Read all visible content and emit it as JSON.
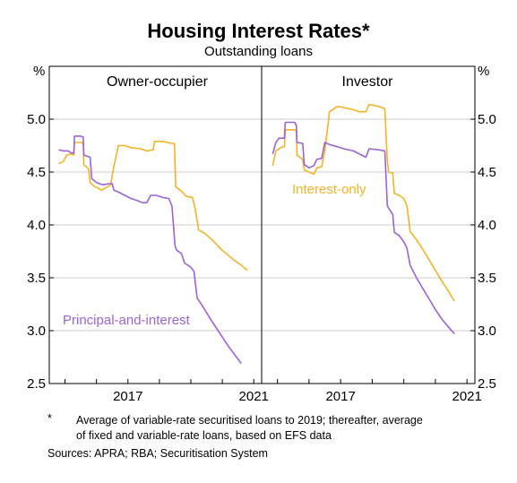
{
  "header": {
    "title": "Housing Interest Rates*",
    "subtitle": "Outstanding loans"
  },
  "footer": {
    "footnote_marker": "*",
    "footnote_line1": "Average of variable-rate securitised loans to 2019; thereafter, average",
    "footnote_line2": "of fixed and variable-rate loans, based on EFS data",
    "sources": "Sources: APRA; RBA; Securitisation System"
  },
  "colors": {
    "interest_only": "#f5b324",
    "principal_and_interest": "#9b63d6"
  },
  "chart_data": {
    "type": "line",
    "unit_left": "%",
    "unit_right": "%",
    "ylim": [
      2.5,
      5.5
    ],
    "yticks": [
      "2.5",
      "3.0",
      "3.5",
      "4.0",
      "4.5",
      "5.0"
    ],
    "xlim": [
      2014.5,
      2021.25
    ],
    "xticks": [
      {
        "value": 2017,
        "label": "2017"
      },
      {
        "value": 2021,
        "label": "2021"
      }
    ],
    "grid": true,
    "panels": [
      {
        "title": "Owner-occupier",
        "series": [
          {
            "name": "Interest-only",
            "color": "#f5b324",
            "points": [
              [
                2014.8,
                4.58
              ],
              [
                2014.95,
                4.6
              ],
              [
                2015.05,
                4.66
              ],
              [
                2015.2,
                4.67
              ],
              [
                2015.28,
                4.66
              ],
              [
                2015.3,
                4.78
              ],
              [
                2015.5,
                4.78
              ],
              [
                2015.58,
                4.77
              ],
              [
                2015.6,
                4.57
              ],
              [
                2015.75,
                4.53
              ],
              [
                2015.8,
                4.4
              ],
              [
                2015.95,
                4.36
              ],
              [
                2016.05,
                4.35
              ],
              [
                2016.15,
                4.33
              ],
              [
                2016.3,
                4.35
              ],
              [
                2016.45,
                4.38
              ],
              [
                2016.55,
                4.55
              ],
              [
                2016.7,
                4.75
              ],
              [
                2016.9,
                4.75
              ],
              [
                2017.1,
                4.73
              ],
              [
                2017.4,
                4.72
              ],
              [
                2017.6,
                4.7
              ],
              [
                2017.8,
                4.71
              ],
              [
                2017.85,
                4.79
              ],
              [
                2018.1,
                4.79
              ],
              [
                2018.4,
                4.77
              ],
              [
                2018.48,
                4.77
              ],
              [
                2018.52,
                4.36
              ],
              [
                2018.7,
                4.32
              ],
              [
                2018.85,
                4.27
              ],
              [
                2019.05,
                4.26
              ],
              [
                2019.12,
                4.18
              ],
              [
                2019.25,
                3.95
              ],
              [
                2019.4,
                3.93
              ],
              [
                2019.6,
                3.88
              ],
              [
                2019.8,
                3.82
              ],
              [
                2020.0,
                3.76
              ],
              [
                2020.2,
                3.71
              ],
              [
                2020.4,
                3.66
              ],
              [
                2020.6,
                3.62
              ],
              [
                2020.8,
                3.57
              ]
            ]
          },
          {
            "name": "Principal-and-interest",
            "color": "#9b63d6",
            "points": [
              [
                2014.8,
                4.71
              ],
              [
                2014.95,
                4.7
              ],
              [
                2015.1,
                4.7
              ],
              [
                2015.2,
                4.68
              ],
              [
                2015.28,
                4.68
              ],
              [
                2015.3,
                4.84
              ],
              [
                2015.5,
                4.84
              ],
              [
                2015.58,
                4.83
              ],
              [
                2015.6,
                4.66
              ],
              [
                2015.8,
                4.64
              ],
              [
                2015.85,
                4.44
              ],
              [
                2016.0,
                4.4
              ],
              [
                2016.2,
                4.38
              ],
              [
                2016.4,
                4.39
              ],
              [
                2016.5,
                4.39
              ],
              [
                2016.55,
                4.33
              ],
              [
                2016.7,
                4.31
              ],
              [
                2016.9,
                4.28
              ],
              [
                2017.1,
                4.25
              ],
              [
                2017.3,
                4.23
              ],
              [
                2017.45,
                4.21
              ],
              [
                2017.6,
                4.21
              ],
              [
                2017.72,
                4.28
              ],
              [
                2017.9,
                4.28
              ],
              [
                2018.1,
                4.26
              ],
              [
                2018.3,
                4.25
              ],
              [
                2018.4,
                4.18
              ],
              [
                2018.5,
                3.8
              ],
              [
                2018.55,
                3.76
              ],
              [
                2018.7,
                3.73
              ],
              [
                2018.8,
                3.64
              ],
              [
                2019.0,
                3.6
              ],
              [
                2019.1,
                3.56
              ],
              [
                2019.2,
                3.31
              ],
              [
                2019.4,
                3.22
              ],
              [
                2019.6,
                3.12
              ],
              [
                2019.8,
                3.03
              ],
              [
                2020.0,
                2.94
              ],
              [
                2020.2,
                2.85
              ],
              [
                2020.4,
                2.77
              ],
              [
                2020.6,
                2.69
              ]
            ]
          }
        ],
        "annotations": [
          {
            "text": "Principal-and-interest",
            "color": "#9b63d6"
          }
        ]
      },
      {
        "title": "Investor",
        "series": [
          {
            "name": "Interest-only",
            "color": "#f5b324",
            "points": [
              [
                2014.85,
                4.56
              ],
              [
                2014.95,
                4.7
              ],
              [
                2015.05,
                4.72
              ],
              [
                2015.18,
                4.74
              ],
              [
                2015.22,
                4.74
              ],
              [
                2015.25,
                4.9
              ],
              [
                2015.4,
                4.9
              ],
              [
                2015.55,
                4.9
              ],
              [
                2015.6,
                4.88
              ],
              [
                2015.62,
                4.66
              ],
              [
                2015.8,
                4.62
              ],
              [
                2015.85,
                4.52
              ],
              [
                2016.0,
                4.5
              ],
              [
                2016.15,
                4.48
              ],
              [
                2016.25,
                4.54
              ],
              [
                2016.4,
                4.55
              ],
              [
                2016.5,
                4.7
              ],
              [
                2016.65,
                5.07
              ],
              [
                2016.9,
                5.12
              ],
              [
                2017.1,
                5.11
              ],
              [
                2017.4,
                5.09
              ],
              [
                2017.6,
                5.07
              ],
              [
                2017.8,
                5.07
              ],
              [
                2017.9,
                5.14
              ],
              [
                2018.2,
                5.12
              ],
              [
                2018.4,
                5.1
              ],
              [
                2018.48,
                4.6
              ],
              [
                2018.52,
                4.5
              ],
              [
                2018.65,
                4.49
              ],
              [
                2018.7,
                4.3
              ],
              [
                2018.85,
                4.28
              ],
              [
                2019.0,
                4.25
              ],
              [
                2019.1,
                4.18
              ],
              [
                2019.2,
                3.94
              ],
              [
                2019.4,
                3.86
              ],
              [
                2019.6,
                3.77
              ],
              [
                2019.8,
                3.67
              ],
              [
                2020.0,
                3.57
              ],
              [
                2020.2,
                3.47
              ],
              [
                2020.4,
                3.38
              ],
              [
                2020.6,
                3.28
              ]
            ]
          },
          {
            "name": "Principal-and-interest",
            "color": "#9b63d6",
            "points": [
              [
                2014.85,
                4.67
              ],
              [
                2014.95,
                4.78
              ],
              [
                2015.05,
                4.82
              ],
              [
                2015.18,
                4.82
              ],
              [
                2015.22,
                4.82
              ],
              [
                2015.25,
                4.97
              ],
              [
                2015.4,
                4.97
              ],
              [
                2015.55,
                4.97
              ],
              [
                2015.6,
                4.94
              ],
              [
                2015.62,
                4.78
              ],
              [
                2015.8,
                4.77
              ],
              [
                2015.85,
                4.57
              ],
              [
                2016.0,
                4.54
              ],
              [
                2016.15,
                4.56
              ],
              [
                2016.25,
                4.62
              ],
              [
                2016.4,
                4.63
              ],
              [
                2016.5,
                4.78
              ],
              [
                2016.65,
                4.76
              ],
              [
                2016.9,
                4.74
              ],
              [
                2017.1,
                4.72
              ],
              [
                2017.4,
                4.7
              ],
              [
                2017.6,
                4.67
              ],
              [
                2017.8,
                4.64
              ],
              [
                2017.9,
                4.72
              ],
              [
                2018.2,
                4.71
              ],
              [
                2018.4,
                4.7
              ],
              [
                2018.48,
                4.18
              ],
              [
                2018.52,
                4.16
              ],
              [
                2018.65,
                4.1
              ],
              [
                2018.7,
                3.93
              ],
              [
                2018.85,
                3.9
              ],
              [
                2019.0,
                3.84
              ],
              [
                2019.1,
                3.78
              ],
              [
                2019.2,
                3.62
              ],
              [
                2019.4,
                3.5
              ],
              [
                2019.6,
                3.4
              ],
              [
                2019.8,
                3.3
              ],
              [
                2020.0,
                3.2
              ],
              [
                2020.2,
                3.11
              ],
              [
                2020.4,
                3.04
              ],
              [
                2020.6,
                2.97
              ]
            ]
          }
        ],
        "annotations": [
          {
            "text": "Interest-only",
            "color": "#f5b324"
          }
        ]
      }
    ]
  }
}
